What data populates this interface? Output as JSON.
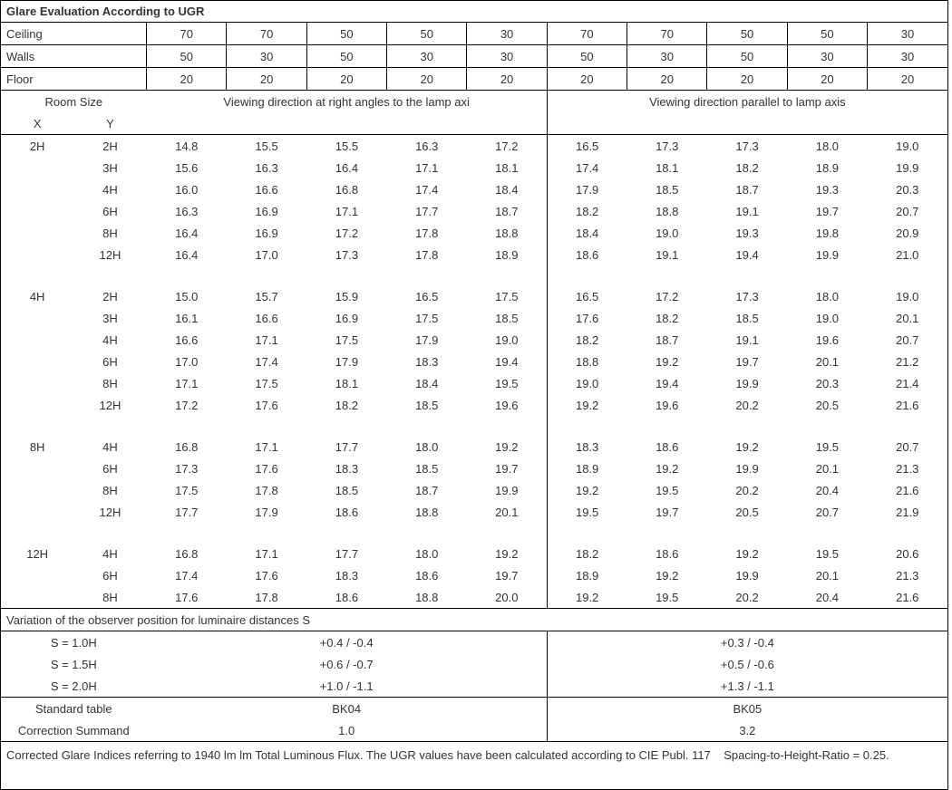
{
  "title": "Glare Evaluation According to UGR",
  "header_labels": {
    "ceiling": "Ceiling",
    "walls": "Walls",
    "floor": "Floor"
  },
  "ceiling": [
    "70",
    "70",
    "50",
    "50",
    "30",
    "70",
    "70",
    "50",
    "50",
    "30"
  ],
  "walls": [
    "50",
    "30",
    "50",
    "30",
    "30",
    "50",
    "30",
    "50",
    "30",
    "30"
  ],
  "floor": [
    "20",
    "20",
    "20",
    "20",
    "20",
    "20",
    "20",
    "20",
    "20",
    "20"
  ],
  "room_size_label": "Room Size",
  "room_x_label": "X",
  "room_y_label": "Y",
  "group_left": "Viewing direction at right angles to the lamp axi",
  "group_right": "Viewing direction parallel to lamp axis",
  "blocks": [
    {
      "x": "2H",
      "rows": [
        {
          "y": "2H",
          "v": [
            "14.8",
            "15.5",
            "15.5",
            "16.3",
            "17.2",
            "16.5",
            "17.3",
            "17.3",
            "18.0",
            "19.0"
          ]
        },
        {
          "y": "3H",
          "v": [
            "15.6",
            "16.3",
            "16.4",
            "17.1",
            "18.1",
            "17.4",
            "18.1",
            "18.2",
            "18.9",
            "19.9"
          ]
        },
        {
          "y": "4H",
          "v": [
            "16.0",
            "16.6",
            "16.8",
            "17.4",
            "18.4",
            "17.9",
            "18.5",
            "18.7",
            "19.3",
            "20.3"
          ]
        },
        {
          "y": "6H",
          "v": [
            "16.3",
            "16.9",
            "17.1",
            "17.7",
            "18.7",
            "18.2",
            "18.8",
            "19.1",
            "19.7",
            "20.7"
          ]
        },
        {
          "y": "8H",
          "v": [
            "16.4",
            "16.9",
            "17.2",
            "17.8",
            "18.8",
            "18.4",
            "19.0",
            "19.3",
            "19.8",
            "20.9"
          ]
        },
        {
          "y": "12H",
          "v": [
            "16.4",
            "17.0",
            "17.3",
            "17.8",
            "18.9",
            "18.6",
            "19.1",
            "19.4",
            "19.9",
            "21.0"
          ]
        }
      ]
    },
    {
      "x": "4H",
      "rows": [
        {
          "y": "2H",
          "v": [
            "15.0",
            "15.7",
            "15.9",
            "16.5",
            "17.5",
            "16.5",
            "17.2",
            "17.3",
            "18.0",
            "19.0"
          ]
        },
        {
          "y": "3H",
          "v": [
            "16.1",
            "16.6",
            "16.9",
            "17.5",
            "18.5",
            "17.6",
            "18.2",
            "18.5",
            "19.0",
            "20.1"
          ]
        },
        {
          "y": "4H",
          "v": [
            "16.6",
            "17.1",
            "17.5",
            "17.9",
            "19.0",
            "18.2",
            "18.7",
            "19.1",
            "19.6",
            "20.7"
          ]
        },
        {
          "y": "6H",
          "v": [
            "17.0",
            "17.4",
            "17.9",
            "18.3",
            "19.4",
            "18.8",
            "19.2",
            "19.7",
            "20.1",
            "21.2"
          ]
        },
        {
          "y": "8H",
          "v": [
            "17.1",
            "17.5",
            "18.1",
            "18.4",
            "19.5",
            "19.0",
            "19.4",
            "19.9",
            "20.3",
            "21.4"
          ]
        },
        {
          "y": "12H",
          "v": [
            "17.2",
            "17.6",
            "18.2",
            "18.5",
            "19.6",
            "19.2",
            "19.6",
            "20.2",
            "20.5",
            "21.6"
          ]
        }
      ]
    },
    {
      "x": "8H",
      "rows": [
        {
          "y": "4H",
          "v": [
            "16.8",
            "17.1",
            "17.7",
            "18.0",
            "19.2",
            "18.3",
            "18.6",
            "19.2",
            "19.5",
            "20.7"
          ]
        },
        {
          "y": "6H",
          "v": [
            "17.3",
            "17.6",
            "18.3",
            "18.5",
            "19.7",
            "18.9",
            "19.2",
            "19.9",
            "20.1",
            "21.3"
          ]
        },
        {
          "y": "8H",
          "v": [
            "17.5",
            "17.8",
            "18.5",
            "18.7",
            "19.9",
            "19.2",
            "19.5",
            "20.2",
            "20.4",
            "21.6"
          ]
        },
        {
          "y": "12H",
          "v": [
            "17.7",
            "17.9",
            "18.6",
            "18.8",
            "20.1",
            "19.5",
            "19.7",
            "20.5",
            "20.7",
            "21.9"
          ]
        }
      ]
    },
    {
      "x": "12H",
      "rows": [
        {
          "y": "4H",
          "v": [
            "16.8",
            "17.1",
            "17.7",
            "18.0",
            "19.2",
            "18.2",
            "18.6",
            "19.2",
            "19.5",
            "20.6"
          ]
        },
        {
          "y": "6H",
          "v": [
            "17.4",
            "17.6",
            "18.3",
            "18.6",
            "19.7",
            "18.9",
            "19.2",
            "19.9",
            "20.1",
            "21.3"
          ]
        },
        {
          "y": "8H",
          "v": [
            "17.6",
            "17.8",
            "18.6",
            "18.8",
            "20.0",
            "19.2",
            "19.5",
            "20.2",
            "20.4",
            "21.6"
          ]
        }
      ]
    }
  ],
  "variation_title": "Variation of the observer position for luminaire distances S",
  "variation_rows": [
    {
      "label": "S = 1.0H",
      "left": "+0.4 / -0.4",
      "right": "+0.3 / -0.4"
    },
    {
      "label": "S = 1.5H",
      "left": "+0.6 / -0.7",
      "right": "+0.5 / -0.6"
    },
    {
      "label": "S = 2.0H",
      "left": "+1.0 / -1.1",
      "right": "+1.3 / -1.1"
    }
  ],
  "std_label": "Standard table",
  "std_left": "BK04",
  "std_right": "BK05",
  "corr_label": "Correction Summand",
  "corr_left": "1.0",
  "corr_right": "3.2",
  "footnote": "Corrected Glare Indices referring to 1940 lm lm Total Luminous Flux. The UGR values have been calculated according to CIE Publ. 117    Spacing-to-Height-Ratio = 0.25."
}
